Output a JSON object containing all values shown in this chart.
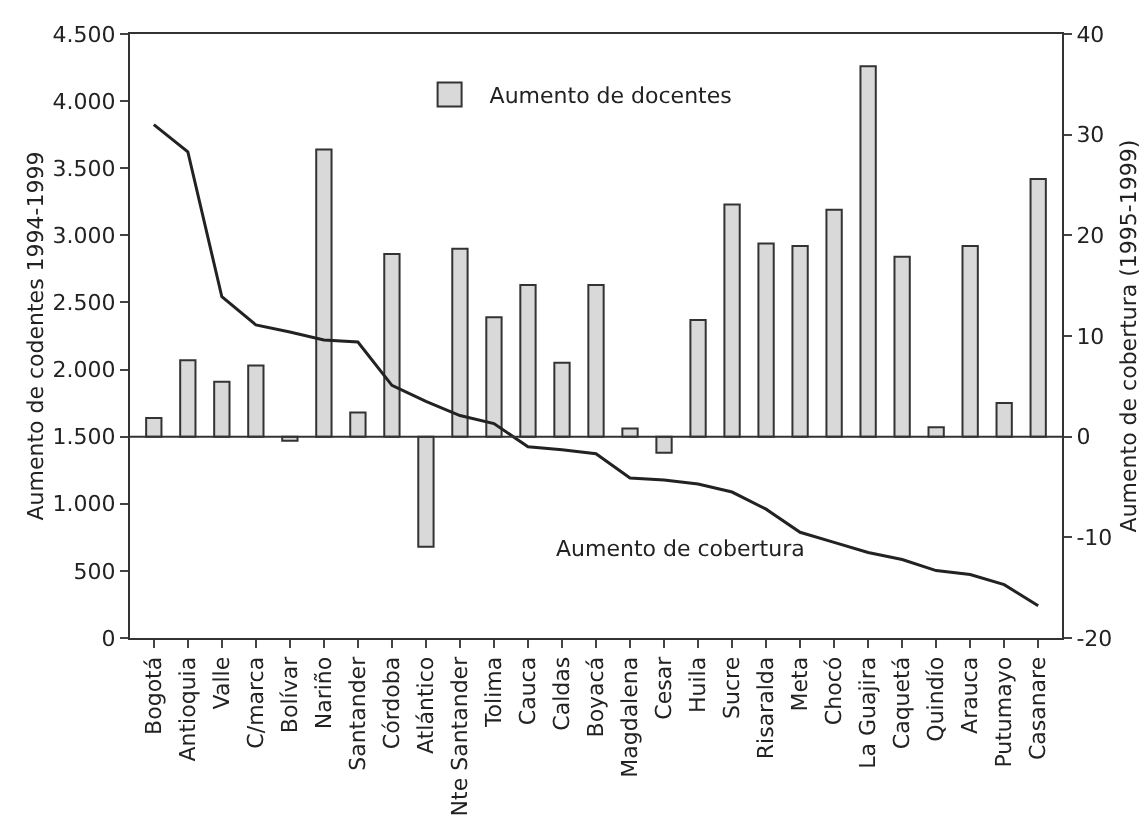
{
  "chart_data": {
    "type": "bar",
    "categories": [
      "Bogotá",
      "Antioquia",
      "Valle",
      "C/marca",
      "Bolívar",
      "Nariño",
      "Santander",
      "Córdoba",
      "Atlántico",
      "Nte Santander",
      "Tolima",
      "Cauca",
      "Caldas",
      "Boyacá",
      "Magdalena",
      "Cesar",
      "Huila",
      "Sucre",
      "Risaralda",
      "Meta",
      "Chocó",
      "La Guajira",
      "Caquetá",
      "Quindío",
      "Arauca",
      "Putumayo",
      "Casanare"
    ],
    "ylabel": "Aumento de codentes 1994-1999",
    "y2label": "Aumento de cobertura (1995-1999)",
    "series": [
      {
        "name": "Aumento de docentes",
        "color": "#d9d9d9",
        "base": [
          1500,
          1500,
          1500,
          1500,
          1500,
          1500,
          1500,
          1500,
          1500,
          1500,
          1500,
          1500,
          1500,
          1500,
          1500,
          1500,
          1500,
          1500,
          1500,
          1500,
          1500,
          1500,
          1500,
          1500,
          1500,
          1500,
          1500
        ],
        "values": [
          140,
          570,
          410,
          530,
          -30,
          2140,
          180,
          1360,
          -820,
          1400,
          890,
          1130,
          550,
          1130,
          60,
          -120,
          870,
          1730,
          1440,
          1420,
          1690,
          2760,
          1340,
          70,
          1420,
          250,
          1920
        ]
      },
      {
        "name": "Aumento de cobertura",
        "type": "line",
        "axis": "y2",
        "color": "#222222",
        "values": [
          31,
          28.3,
          13.9,
          11.1,
          10.4,
          9.6,
          9.4,
          5.1,
          3.5,
          2.1,
          1.3,
          -1.0,
          -1.3,
          -1.7,
          -4.1,
          -4.3,
          -4.7,
          -5.5,
          -7.2,
          -9.5,
          -10.5,
          -11.5,
          -12.2,
          -13.3,
          -13.7,
          -14.7,
          -16.8
        ]
      }
    ],
    "ylim": [
      0,
      4500
    ],
    "yticks": [
      0,
      500,
      {
        "value": 1000,
        "label": "1.000"
      },
      {
        "value": 1500,
        "label": "1.500"
      },
      {
        "value": 2000,
        "label": "2.000"
      },
      {
        "value": 2500,
        "label": "2.500"
      },
      {
        "value": 3000,
        "label": "3.000"
      },
      {
        "value": 3500,
        "label": "3.500"
      },
      {
        "value": 4000,
        "label": "4.000"
      },
      {
        "value": 4500,
        "label": "4.500"
      }
    ],
    "y2lim": [
      -20,
      40
    ],
    "y2ticks": [
      -20,
      -10,
      0,
      10,
      20,
      30,
      40
    ],
    "ref_lines": [
      {
        "axis": "y",
        "value": 1500,
        "color": "#333333"
      }
    ],
    "grid": false,
    "legend": "top",
    "marker": "none",
    "line_style": "solid"
  }
}
